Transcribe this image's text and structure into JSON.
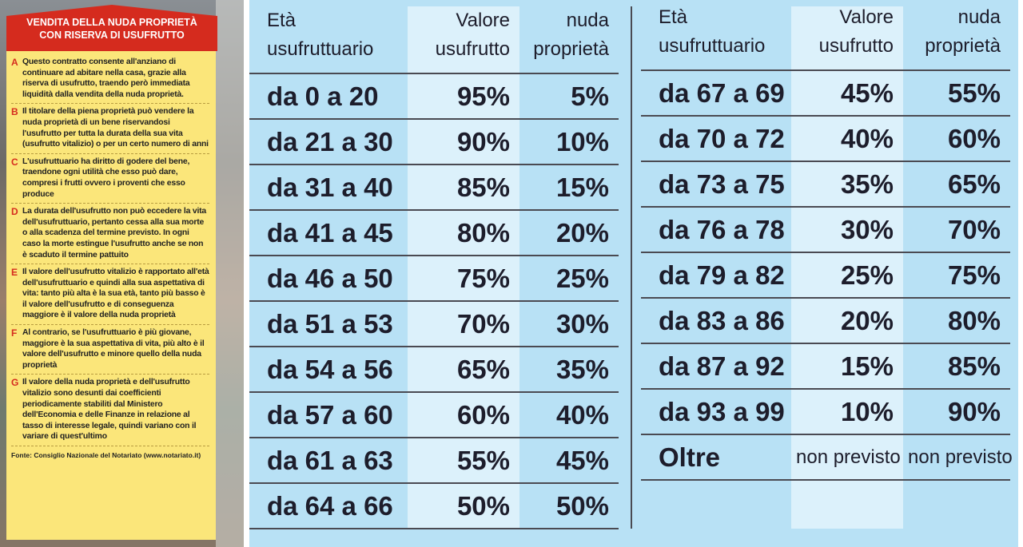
{
  "panel": {
    "title": "VENDITA DELLA NUDA PROPRIETÀ CON RISERVA DI USUFRUTTO",
    "items": [
      {
        "letter": "A",
        "text": "Questo contratto consente all'anziano di continuare ad abitare nella casa, grazie alla riserva di usufrutto, traendo però immediata liquidità dalla vendita della nuda proprietà."
      },
      {
        "letter": "B",
        "text": "Il titolare della piena proprietà può vendere la nuda proprietà di un bene riservandosi l'usufrutto per tutta la durata della sua vita (usufrutto vitalizio) o per un certo numero di anni"
      },
      {
        "letter": "C",
        "text": "L'usufruttuario ha diritto di godere del bene, traendone ogni utilità che esso può dare, compresi i frutti ovvero i proventi che esso produce"
      },
      {
        "letter": "D",
        "text": "La durata dell'usufrutto non può eccedere la vita dell'usufruttuario, pertanto cessa alla sua morte o alla scadenza del termine previsto. In ogni caso la morte estingue l'usufrutto anche se non è scaduto il termine pattuito"
      },
      {
        "letter": "E",
        "text": "Il valore dell'usufrutto vitalizio è rapportato all'età dell'usufruttuario e quindi alla sua aspettativa di vita: tanto più alta è la sua età, tanto più basso è il valore dell'usufrutto e di conseguenza maggiore è il valore della nuda proprietà"
      },
      {
        "letter": "F",
        "text": "Al contrario, se l'usufruttuario è più giovane, maggiore è la sua aspettativa di vita, più alto è il valore dell'usufrutto e minore quello della nuda proprietà"
      },
      {
        "letter": "G",
        "text": "Il valore della nuda proprietà e dell'usufrutto vitalizio sono desunti dai coefficienti periodicamente stabiliti dal Ministero dell'Economia e delle Finanze in relazione al tasso di interesse legale, quindi variano con il variare di quest'ultimo"
      }
    ],
    "source": "Fonte: Consiglio Nazionale del Notariato (www.notariato.it)"
  },
  "tables": [
    {
      "headers": [
        "Età usufruttuario",
        "Valore usufrutto",
        "nuda proprietà"
      ],
      "rows": [
        [
          "da 0 a 20",
          "95%",
          "5%"
        ],
        [
          "da 21 a 30",
          "90%",
          "10%"
        ],
        [
          "da 31 a 40",
          "85%",
          "15%"
        ],
        [
          "da 41 a 45",
          "80%",
          "20%"
        ],
        [
          "da 46 a 50",
          "75%",
          "25%"
        ],
        [
          "da 51 a 53",
          "70%",
          "30%"
        ],
        [
          "da 54 a 56",
          "65%",
          "35%"
        ],
        [
          "da 57 a 60",
          "60%",
          "40%"
        ],
        [
          "da 61 a 63",
          "55%",
          "45%"
        ],
        [
          "da 64 a 66",
          "50%",
          "50%"
        ]
      ]
    },
    {
      "headers": [
        "Età usufruttuario",
        "Valore usufrutto",
        "nuda proprietà"
      ],
      "rows": [
        [
          "da 67 a 69",
          "45%",
          "55%"
        ],
        [
          "da 70 a 72",
          "40%",
          "60%"
        ],
        [
          "da 73 a 75",
          "35%",
          "65%"
        ],
        [
          "da 76 a 78",
          "30%",
          "70%"
        ],
        [
          "da 79 a 82",
          "25%",
          "75%"
        ],
        [
          "da 83 a 86",
          "20%",
          "80%"
        ],
        [
          "da 87 a 92",
          "15%",
          "85%"
        ],
        [
          "da 93 a 99",
          "10%",
          "90%"
        ],
        [
          "Oltre",
          "non previsto",
          "non previsto"
        ]
      ]
    }
  ]
}
